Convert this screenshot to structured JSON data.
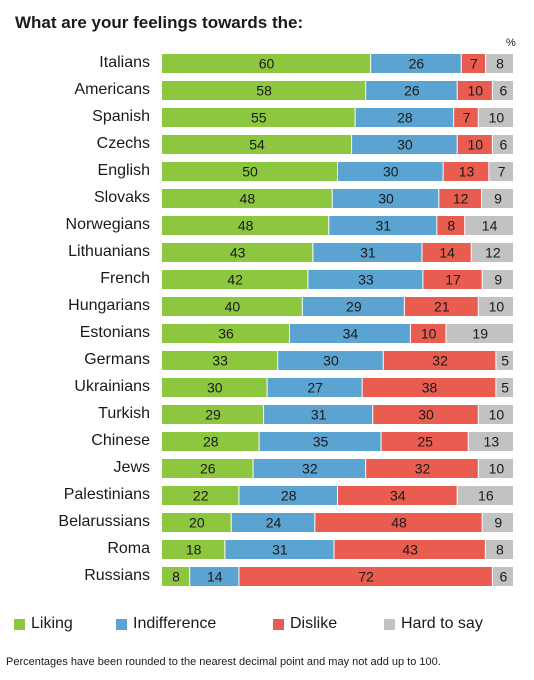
{
  "title": "What are your feelings towards the:",
  "unit": "%",
  "footnote": "Percentages have been rounded to the nearest decimal point and may not add up to 100.",
  "colors": {
    "liking": "#8dc63f",
    "indifference": "#5ba3d0",
    "dislike": "#e85d4f",
    "hard_to_say": "#c2c2c2"
  },
  "chart_data": {
    "type": "bar",
    "orientation": "horizontal",
    "stacked": true,
    "title": "What are your feelings towards the:",
    "unit": "%",
    "categories": [
      "Italians",
      "Americans",
      "Spanish",
      "Czechs",
      "English",
      "Slovaks",
      "Norwegians",
      "Lithuanians",
      "French",
      "Hungarians",
      "Estonians",
      "Germans",
      "Ukrainians",
      "Turkish",
      "Chinese",
      "Jews",
      "Palestinians",
      "Belarussians",
      "Roma",
      "Russians"
    ],
    "series": [
      {
        "name": "Liking",
        "color": "#8dc63f",
        "values": [
          60,
          58,
          55,
          54,
          50,
          48,
          48,
          43,
          42,
          40,
          36,
          33,
          30,
          29,
          28,
          26,
          22,
          20,
          18,
          8
        ]
      },
      {
        "name": "Indifference",
        "color": "#5ba3d0",
        "values": [
          26,
          26,
          28,
          30,
          30,
          30,
          31,
          31,
          33,
          29,
          34,
          30,
          27,
          31,
          35,
          32,
          28,
          24,
          31,
          14
        ]
      },
      {
        "name": "Dislike",
        "color": "#e85d4f",
        "values": [
          7,
          10,
          7,
          10,
          13,
          12,
          8,
          14,
          17,
          21,
          10,
          32,
          38,
          30,
          25,
          32,
          34,
          48,
          43,
          72
        ]
      },
      {
        "name": "Hard to say",
        "color": "#c2c2c2",
        "values": [
          8,
          6,
          10,
          6,
          7,
          9,
          14,
          12,
          9,
          10,
          19,
          5,
          5,
          10,
          13,
          10,
          16,
          9,
          8,
          6
        ]
      }
    ],
    "legend_position": "bottom",
    "grid": false
  }
}
